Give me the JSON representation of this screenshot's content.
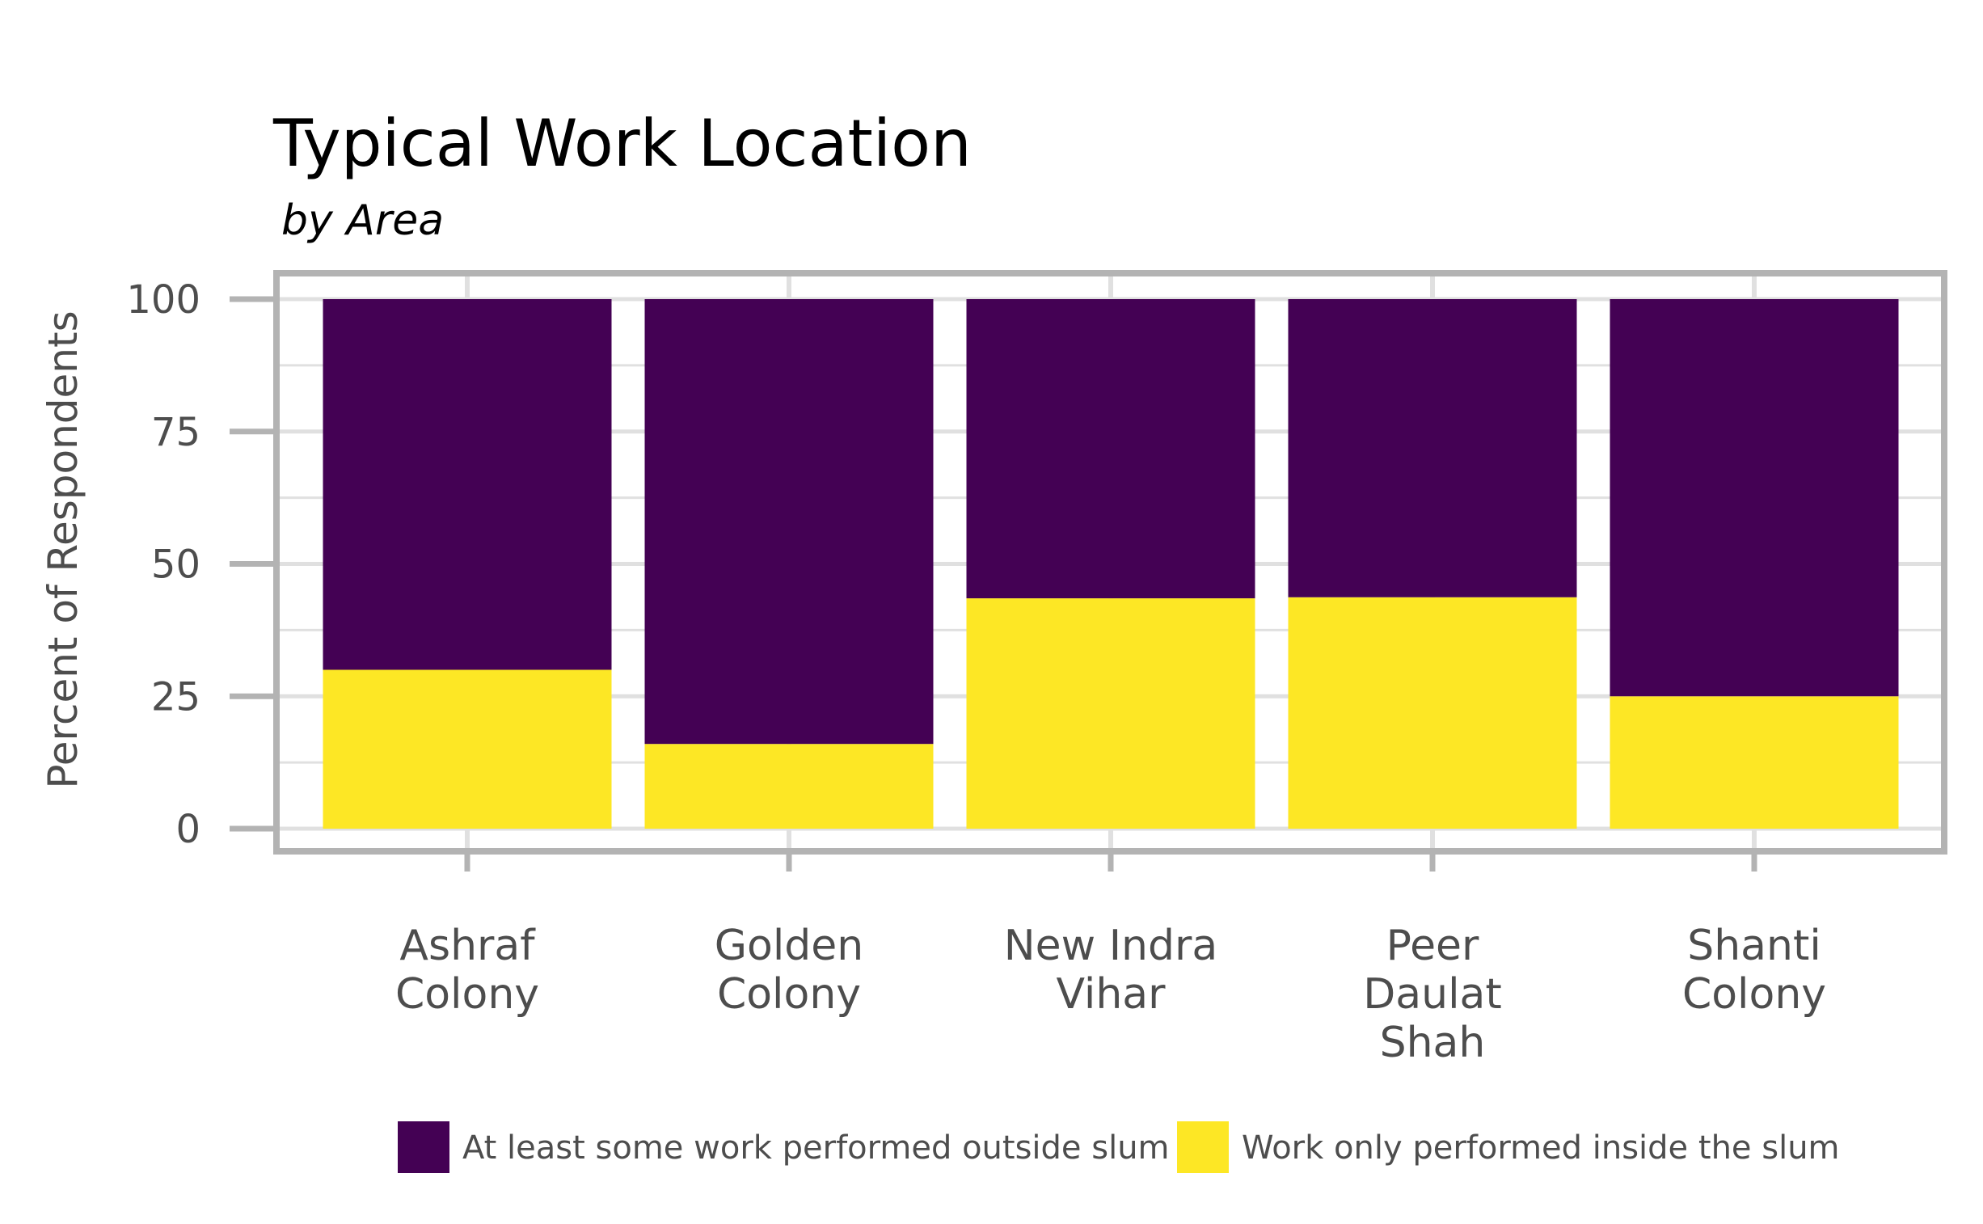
{
  "chart_data": {
    "type": "bar",
    "stacked": true,
    "title": "Typical Work Location",
    "subtitle": "by Area",
    "xlabel": "",
    "ylabel": "Percent of Respondents",
    "ylim": [
      0,
      100
    ],
    "yticks": [
      "0",
      "25",
      "50",
      "75",
      "100"
    ],
    "grid": true,
    "legend_position": "bottom",
    "categories": [
      [
        "Ashraf",
        "Colony"
      ],
      [
        "Golden",
        "Colony"
      ],
      [
        "New Indra",
        "Vihar"
      ],
      [
        "Peer",
        "Daulat",
        "Shah"
      ],
      [
        "Shanti",
        "Colony"
      ]
    ],
    "series": [
      {
        "name": "At least some work performed outside slum",
        "color": "#440154",
        "values": [
          70,
          84,
          56.5,
          56.3,
          75
        ]
      },
      {
        "name": "Work only performed inside the slum",
        "color": "#FDE725",
        "values": [
          30,
          16,
          43.5,
          43.7,
          25
        ]
      }
    ],
    "stack_order": [
      1,
      0
    ]
  }
}
